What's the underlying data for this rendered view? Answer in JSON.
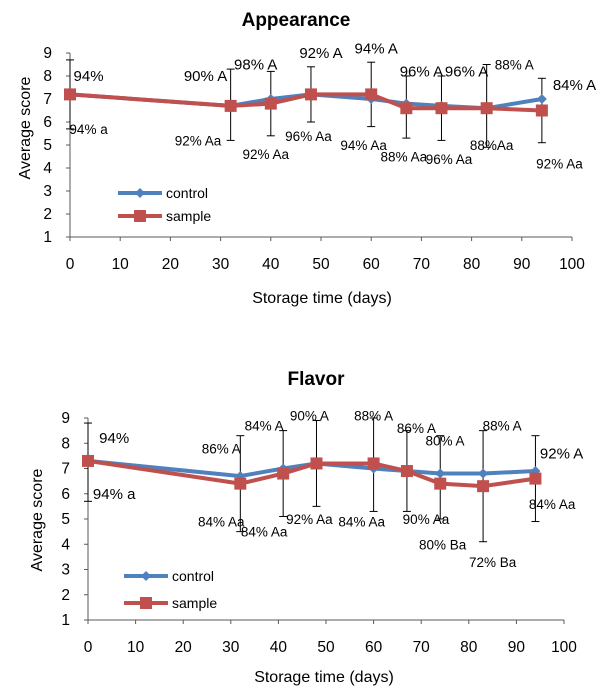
{
  "chart_data": [
    {
      "type": "line",
      "title": "Appearance",
      "xlabel": "Storage time (days)",
      "ylabel": "Average score",
      "xlim": [
        0,
        100
      ],
      "ylim": [
        1,
        9
      ],
      "x_ticks": [
        "0",
        "10",
        "20",
        "30",
        "40",
        "50",
        "60",
        "70",
        "80",
        "90",
        "100"
      ],
      "y_ticks": [
        "1",
        "2",
        "3",
        "4",
        "5",
        "6",
        "7",
        "8",
        "9"
      ],
      "grid": false,
      "legend_position": "bottom-left",
      "series": [
        {
          "name": "control",
          "color": "#4F81BD",
          "marker": "diamond",
          "x": [
            0,
            32,
            40,
            48,
            60,
            67,
            74,
            83,
            94
          ],
          "y": [
            7.2,
            6.7,
            7.0,
            7.2,
            7.0,
            6.8,
            6.7,
            6.6,
            7.0
          ]
        },
        {
          "name": "sample",
          "color": "#C0504D",
          "marker": "square",
          "x": [
            0,
            32,
            40,
            48,
            60,
            67,
            74,
            83,
            94
          ],
          "y": [
            7.2,
            6.7,
            6.8,
            7.2,
            7.2,
            6.6,
            6.6,
            6.6,
            6.5
          ]
        }
      ],
      "error_bars": [
        {
          "x": 0,
          "low": 5.7,
          "high": 8.7
        },
        {
          "x": 32,
          "low": 5.2,
          "high": 8.3
        },
        {
          "x": 40,
          "low": 5.4,
          "high": 8.2
        },
        {
          "x": 48,
          "low": 6.0,
          "high": 8.4
        },
        {
          "x": 60,
          "low": 5.8,
          "high": 8.6
        },
        {
          "x": 67,
          "low": 5.3,
          "high": 8.0
        },
        {
          "x": 74,
          "low": 5.2,
          "high": 8.0
        },
        {
          "x": 83,
          "low": 4.9,
          "high": 8.5
        },
        {
          "x": 94,
          "low": 5.1,
          "high": 7.9
        }
      ],
      "annotations": [
        {
          "text": "94%",
          "x": 3.7,
          "y": 8.0,
          "size": "lg"
        },
        {
          "text": "94% a",
          "x": 3.7,
          "y": 5.7,
          "size": "sm"
        },
        {
          "text": "90% A",
          "x": 27,
          "y": 8.0,
          "size": "lg"
        },
        {
          "text": "92% Aa",
          "x": 25.5,
          "y": 5.2,
          "size": "sm"
        },
        {
          "text": "98% A",
          "x": 37,
          "y": 8.5,
          "size": "lg"
        },
        {
          "text": "92% Aa",
          "x": 39,
          "y": 4.6,
          "size": "sm"
        },
        {
          "text": "92% A",
          "x": 50,
          "y": 9.0,
          "size": "lg"
        },
        {
          "text": "96% Aa",
          "x": 47.5,
          "y": 5.4,
          "size": "sm"
        },
        {
          "text": "94% A",
          "x": 61,
          "y": 9.2,
          "size": "lg"
        },
        {
          "text": "94% Aa",
          "x": 58.5,
          "y": 5.0,
          "size": "sm"
        },
        {
          "text": "96% A",
          "x": 70,
          "y": 8.2,
          "size": "lg"
        },
        {
          "text": "88% Aa",
          "x": 66.5,
          "y": 4.5,
          "size": "sm"
        },
        {
          "text": "96% A",
          "x": 79,
          "y": 8.2,
          "size": "lg"
        },
        {
          "text": "96% Aa",
          "x": 75.5,
          "y": 4.4,
          "size": "sm"
        },
        {
          "text": "88% A",
          "x": 88.5,
          "y": 8.5,
          "size": "sm"
        },
        {
          "text": "88%Aa",
          "x": 84,
          "y": 5.0,
          "size": "sm"
        },
        {
          "text": "84% A",
          "x": 100.5,
          "y": 7.6,
          "size": "lg"
        },
        {
          "text": "92% Aa",
          "x": 97.5,
          "y": 4.2,
          "size": "sm"
        }
      ]
    },
    {
      "type": "line",
      "title": "Flavor",
      "xlabel": "Storage time (days)",
      "ylabel": "Average score",
      "xlim": [
        0,
        100
      ],
      "ylim": [
        1,
        9
      ],
      "x_ticks": [
        "0",
        "10",
        "20",
        "30",
        "40",
        "50",
        "60",
        "70",
        "80",
        "90",
        "100"
      ],
      "y_ticks": [
        "1",
        "2",
        "3",
        "4",
        "5",
        "6",
        "7",
        "8",
        "9"
      ],
      "grid": false,
      "legend_position": "bottom-left",
      "series": [
        {
          "name": "control",
          "color": "#4F81BD",
          "marker": "diamond",
          "x": [
            0,
            32,
            41,
            48,
            60,
            67,
            74,
            83,
            94
          ],
          "y": [
            7.3,
            6.7,
            7.0,
            7.2,
            7.0,
            6.9,
            6.8,
            6.8,
            6.9
          ]
        },
        {
          "name": "sample",
          "color": "#C0504D",
          "marker": "square",
          "x": [
            0,
            32,
            41,
            48,
            60,
            67,
            74,
            83,
            94
          ],
          "y": [
            7.3,
            6.4,
            6.8,
            7.2,
            7.2,
            6.9,
            6.4,
            6.3,
            6.6
          ]
        }
      ],
      "error_bars": [
        {
          "x": 0,
          "low": 5.7,
          "high": 8.8
        },
        {
          "x": 32,
          "low": 4.5,
          "high": 8.3
        },
        {
          "x": 41,
          "low": 5.1,
          "high": 8.5
        },
        {
          "x": 48,
          "low": 5.5,
          "high": 8.9
        },
        {
          "x": 60,
          "low": 5.3,
          "high": 9.0
        },
        {
          "x": 67,
          "low": 5.3,
          "high": 8.5
        },
        {
          "x": 74,
          "low": 5.0,
          "high": 8.3
        },
        {
          "x": 83,
          "low": 4.1,
          "high": 8.5
        },
        {
          "x": 94,
          "low": 4.9,
          "high": 8.3
        }
      ],
      "annotations": [
        {
          "text": "94%",
          "x": 5.5,
          "y": 8.2,
          "size": "lg"
        },
        {
          "text": "94% a",
          "x": 5.5,
          "y": 6.0,
          "size": "lg"
        },
        {
          "text": "86% A",
          "x": 28,
          "y": 7.8,
          "size": "sm"
        },
        {
          "text": "84% Aa",
          "x": 28,
          "y": 4.9,
          "size": "sm"
        },
        {
          "text": "84% A",
          "x": 37,
          "y": 8.7,
          "size": "sm"
        },
        {
          "text": "84% Aa",
          "x": 37,
          "y": 4.5,
          "size": "sm"
        },
        {
          "text": "90% A",
          "x": 46.5,
          "y": 9.1,
          "size": "sm"
        },
        {
          "text": "92% Aa",
          "x": 46.5,
          "y": 5.0,
          "size": "sm"
        },
        {
          "text": "88% A",
          "x": 60,
          "y": 9.1,
          "size": "sm"
        },
        {
          "text": "84% Aa",
          "x": 57.5,
          "y": 4.9,
          "size": "sm"
        },
        {
          "text": "86% A",
          "x": 69,
          "y": 8.6,
          "size": "sm"
        },
        {
          "text": "90% Aa",
          "x": 71,
          "y": 5.0,
          "size": "sm"
        },
        {
          "text": "80% A",
          "x": 75,
          "y": 8.1,
          "size": "sm"
        },
        {
          "text": "80% Ba",
          "x": 74.5,
          "y": 4.0,
          "size": "sm"
        },
        {
          "text": "88% A",
          "x": 87,
          "y": 8.7,
          "size": "sm"
        },
        {
          "text": "72% Ba",
          "x": 85,
          "y": 3.3,
          "size": "sm"
        },
        {
          "text": "92% A",
          "x": 99.5,
          "y": 7.6,
          "size": "lg"
        },
        {
          "text": "84% Aa",
          "x": 97.5,
          "y": 5.6,
          "size": "sm"
        }
      ]
    }
  ]
}
